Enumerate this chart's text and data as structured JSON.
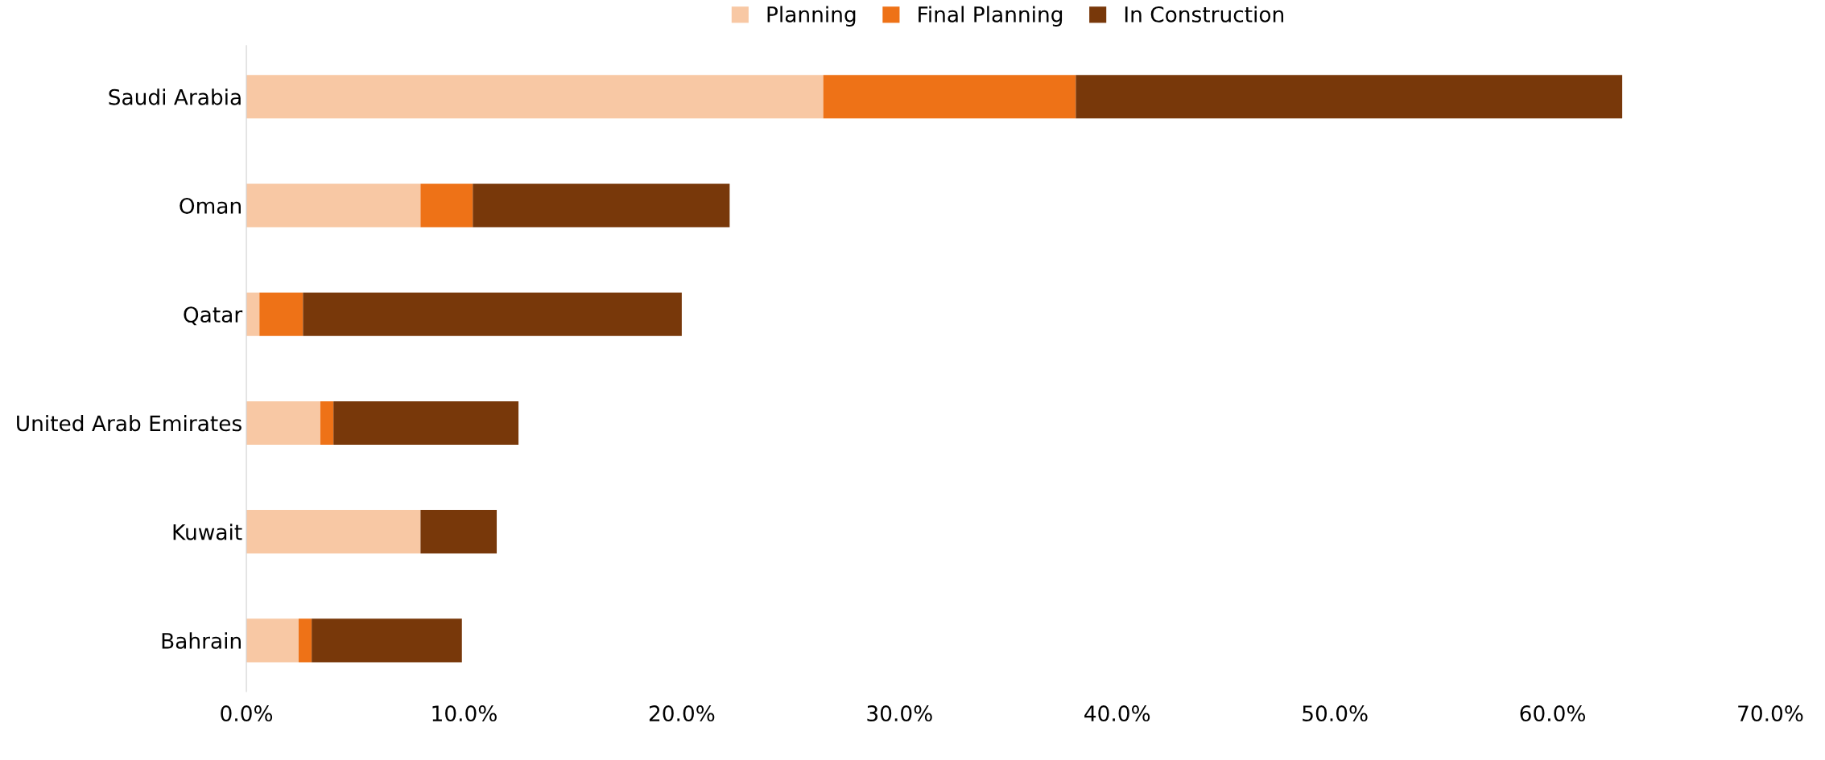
{
  "chart_data": {
    "type": "bar",
    "orientation": "horizontal",
    "stacked": true,
    "legend": "top",
    "grid": false,
    "categories": [
      "Saudi Arabia",
      "Oman",
      "Qatar",
      "United Arab Emirates",
      "Kuwait",
      "Bahrain"
    ],
    "series": [
      {
        "name": "Planning",
        "color": "#f8c8a4",
        "values": [
          26.5,
          8.0,
          0.6,
          3.4,
          8.0,
          2.4
        ]
      },
      {
        "name": "Final Planning",
        "color": "#ee7217",
        "values": [
          11.6,
          2.4,
          2.0,
          0.6,
          0,
          0.6
        ]
      },
      {
        "name": "In Construction",
        "color": "#78380a",
        "values": [
          25.1,
          11.8,
          17.4,
          8.5,
          3.5,
          6.9
        ]
      }
    ],
    "xlim": [
      0,
      70
    ],
    "xticks": [
      {
        "value": 0,
        "label": "0.0%"
      },
      {
        "value": 10,
        "label": "10.0%"
      },
      {
        "value": 20,
        "label": "20.0%"
      },
      {
        "value": 30,
        "label": "30.0%"
      },
      {
        "value": 40,
        "label": "40.0%"
      },
      {
        "value": 50,
        "label": "50.0%"
      },
      {
        "value": 60,
        "label": "60.0%"
      },
      {
        "value": 70,
        "label": "70.0%"
      }
    ]
  }
}
